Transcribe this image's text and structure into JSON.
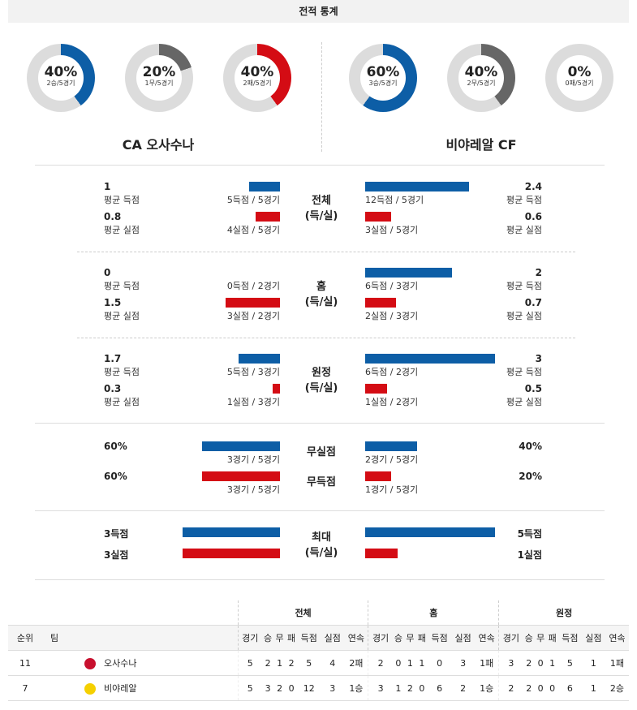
{
  "title": "전적 통계",
  "donuts": [
    {
      "pct": "40%",
      "sub": "2승/5경기",
      "value": 40,
      "color": "#0d5ea6"
    },
    {
      "pct": "20%",
      "sub": "1무/5경기",
      "value": 20,
      "color": "#666666"
    },
    {
      "pct": "40%",
      "sub": "2패/5경기",
      "value": 40,
      "color": "#d40c14"
    },
    {
      "pct": "60%",
      "sub": "3승/5경기",
      "value": 60,
      "color": "#0d5ea6"
    },
    {
      "pct": "40%",
      "sub": "2무/5경기",
      "value": 40,
      "color": "#666666"
    },
    {
      "pct": "0%",
      "sub": "0패/5경기",
      "value": 0,
      "color": "#d40c14"
    }
  ],
  "teams": {
    "home": "CA 오사수나",
    "away": "비야레알 CF"
  },
  "stats": {
    "overall": {
      "label1": "전체",
      "label2": "(득/실)",
      "l_score": "1",
      "l_score_lbl": "평균 득점",
      "l_score_cnt": "5득점 / 5경기",
      "l_score_frac": 0.42,
      "l_concede": "0.8",
      "l_concede_lbl": "평균 실점",
      "l_concede_cnt": "4실점 / 5경기",
      "l_concede_frac": 0.33,
      "r_score": "2.4",
      "r_score_lbl": "평균 득점",
      "r_score_cnt": "12득점 / 5경기",
      "r_score_frac": 1.0,
      "r_concede": "0.6",
      "r_concede_lbl": "평균 실점",
      "r_concede_cnt": "3실점 / 5경기",
      "r_concede_frac": 0.25
    },
    "home": {
      "label1": "홈",
      "label2": "(득/실)",
      "l_score": "0",
      "l_score_lbl": "평균 득점",
      "l_score_cnt": "0득점 / 2경기",
      "l_score_frac": 0,
      "l_concede": "1.5",
      "l_concede_lbl": "평균 실점",
      "l_concede_cnt": "3실점 / 2경기",
      "l_concede_frac": 0.75,
      "r_score": "2",
      "r_score_lbl": "평균 득점",
      "r_score_cnt": "6득점 / 3경기",
      "r_score_frac": 1.0,
      "r_concede": "0.7",
      "r_concede_lbl": "평균 실점",
      "r_concede_cnt": "2실점 / 3경기",
      "r_concede_frac": 0.35
    },
    "away": {
      "label1": "원정",
      "label2": "(득/실)",
      "l_score": "1.7",
      "l_score_lbl": "평균 득점",
      "l_score_cnt": "5득점 / 3경기",
      "l_score_frac": 0.57,
      "l_concede": "0.3",
      "l_concede_lbl": "평균 실점",
      "l_concede_cnt": "1실점 / 3경기",
      "l_concede_frac": 0.1,
      "r_score": "3",
      "r_score_lbl": "평균 득점",
      "r_score_cnt": "6득점 / 2경기",
      "r_score_frac": 1.0,
      "r_concede": "0.5",
      "r_concede_lbl": "평균 실점",
      "r_concede_cnt": "1실점 / 2경기",
      "r_concede_frac": 0.17
    }
  },
  "clean": {
    "label": "무실점",
    "l_pct": "60%",
    "l_cnt": "3경기 / 5경기",
    "l_frac": 0.6,
    "r_pct": "40%",
    "r_cnt": "2경기 / 5경기",
    "r_frac": 0.4
  },
  "noscore": {
    "label": "무득점",
    "l_pct": "60%",
    "l_cnt": "3경기 / 5경기",
    "l_frac": 0.6,
    "r_pct": "20%",
    "r_cnt": "1경기 / 5경기",
    "r_frac": 0.2
  },
  "max": {
    "label1": "최대",
    "label2": "(득/실)",
    "l_score": "3득점",
    "l_concede": "3실점",
    "l_score_frac": 0.75,
    "l_concede_frac": 0.75,
    "r_score": "5득점",
    "r_concede": "1실점",
    "r_score_frac": 1.0,
    "r_concede_frac": 0.25
  },
  "standings": {
    "groups": [
      "전체",
      "홈",
      "원정"
    ],
    "cols": [
      "순위",
      "팀"
    ],
    "sub": [
      "경기",
      "승",
      "무",
      "패",
      "득점",
      "실점",
      "연속"
    ],
    "rows": [
      {
        "rank": "11",
        "team": "오사수나",
        "logo": "#c8102e",
        "cells": [
          "5",
          "2",
          "1",
          "2",
          "5",
          "4",
          "2패",
          "2",
          "0",
          "1",
          "1",
          "0",
          "3",
          "1패",
          "3",
          "2",
          "0",
          "1",
          "5",
          "1",
          "1패"
        ]
      },
      {
        "rank": "7",
        "team": "비야레알",
        "logo": "#f5d000",
        "cells": [
          "5",
          "3",
          "2",
          "0",
          "12",
          "3",
          "1승",
          "3",
          "1",
          "2",
          "0",
          "6",
          "2",
          "1승",
          "2",
          "2",
          "0",
          "0",
          "6",
          "1",
          "2승"
        ]
      }
    ]
  }
}
